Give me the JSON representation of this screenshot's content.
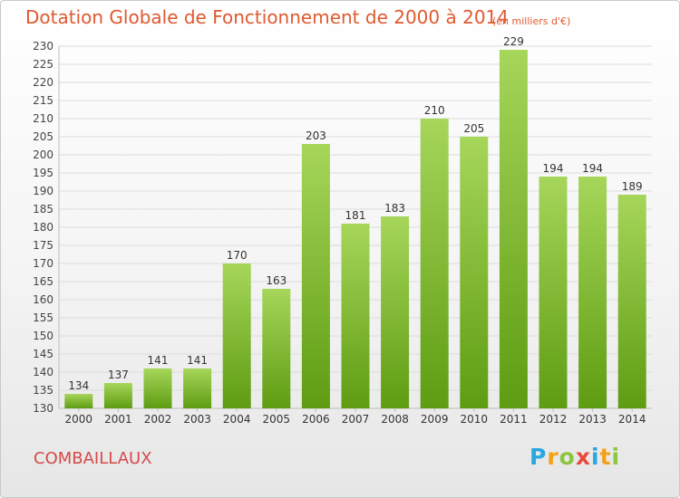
{
  "title": "Dotation Globale de Fonctionnement de 2000 à 2014",
  "subtitle": "(en milliers d'€)",
  "commune": "COMBAILLAUX",
  "brand": {
    "letters": [
      "P",
      "r",
      "o",
      "x",
      "i",
      "t",
      "i"
    ],
    "colors": [
      "#2aa7e0",
      "#f2a11a",
      "#8cc63e",
      "#e84b3c",
      "#2aa7e0",
      "#f2a11a",
      "#8cc63e"
    ]
  },
  "colors": {
    "bar_top": "#a6d65a",
    "bar_bottom": "#5e9c12",
    "title": "#e0592f",
    "commune": "#d64a4a"
  },
  "chart_data": {
    "type": "bar",
    "title": "Dotation Globale de Fonctionnement de 2000 à 2014",
    "subtitle": "(en milliers d'€)",
    "categories": [
      "2000",
      "2001",
      "2002",
      "2003",
      "2004",
      "2005",
      "2006",
      "2007",
      "2008",
      "2009",
      "2010",
      "2011",
      "2012",
      "2013",
      "2014"
    ],
    "values": [
      134,
      137,
      141,
      141,
      170,
      163,
      203,
      181,
      183,
      210,
      205,
      229,
      194,
      194,
      189
    ],
    "ylim": [
      130,
      230
    ],
    "yticks": [
      130,
      135,
      140,
      145,
      150,
      155,
      160,
      165,
      170,
      175,
      180,
      185,
      190,
      195,
      200,
      205,
      210,
      215,
      220,
      225,
      230
    ],
    "grid": true,
    "legend": "none"
  }
}
